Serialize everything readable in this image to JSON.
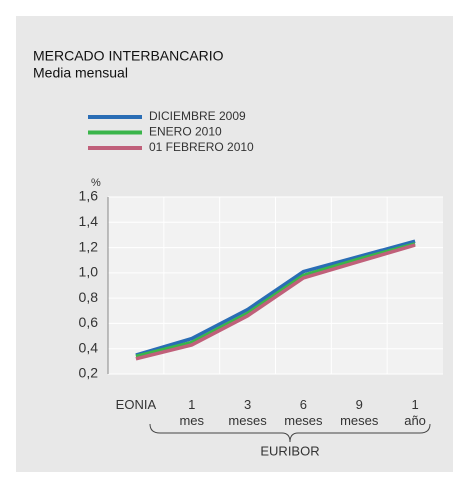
{
  "chart_data": {
    "type": "line",
    "title": "MERCADO INTERBANCARIO",
    "subtitle": "Media mensual",
    "y_unit": "%",
    "group_label": "EURIBOR",
    "categories": [
      "EONIA",
      "1 mes",
      "3 meses",
      "6 meses",
      "9 meses",
      "1 año"
    ],
    "series": [
      {
        "name": "DICIEMBRE 2009",
        "color": "#2a6db5",
        "values": [
          0.35,
          0.48,
          0.71,
          1.01,
          1.13,
          1.25
        ]
      },
      {
        "name": "ENERO 2010",
        "color": "#3ab54a",
        "values": [
          0.34,
          0.45,
          0.68,
          0.98,
          1.11,
          1.23
        ]
      },
      {
        "name": "01 FEBRERO 2010",
        "color": "#c0607a",
        "values": [
          0.32,
          0.43,
          0.66,
          0.96,
          1.09,
          1.22
        ]
      }
    ],
    "ylim": [
      0.2,
      1.6
    ],
    "yticks": [
      {
        "value": 0.2,
        "label": "0,2"
      },
      {
        "value": 0.4,
        "label": "0,4"
      },
      {
        "value": 0.6,
        "label": "0,6"
      },
      {
        "value": 0.8,
        "label": "0,8"
      },
      {
        "value": 1.0,
        "label": "1,0"
      },
      {
        "value": 1.2,
        "label": "1,2"
      },
      {
        "value": 1.4,
        "label": "1,4"
      },
      {
        "value": 1.6,
        "label": "1,6"
      }
    ],
    "grid": true
  }
}
